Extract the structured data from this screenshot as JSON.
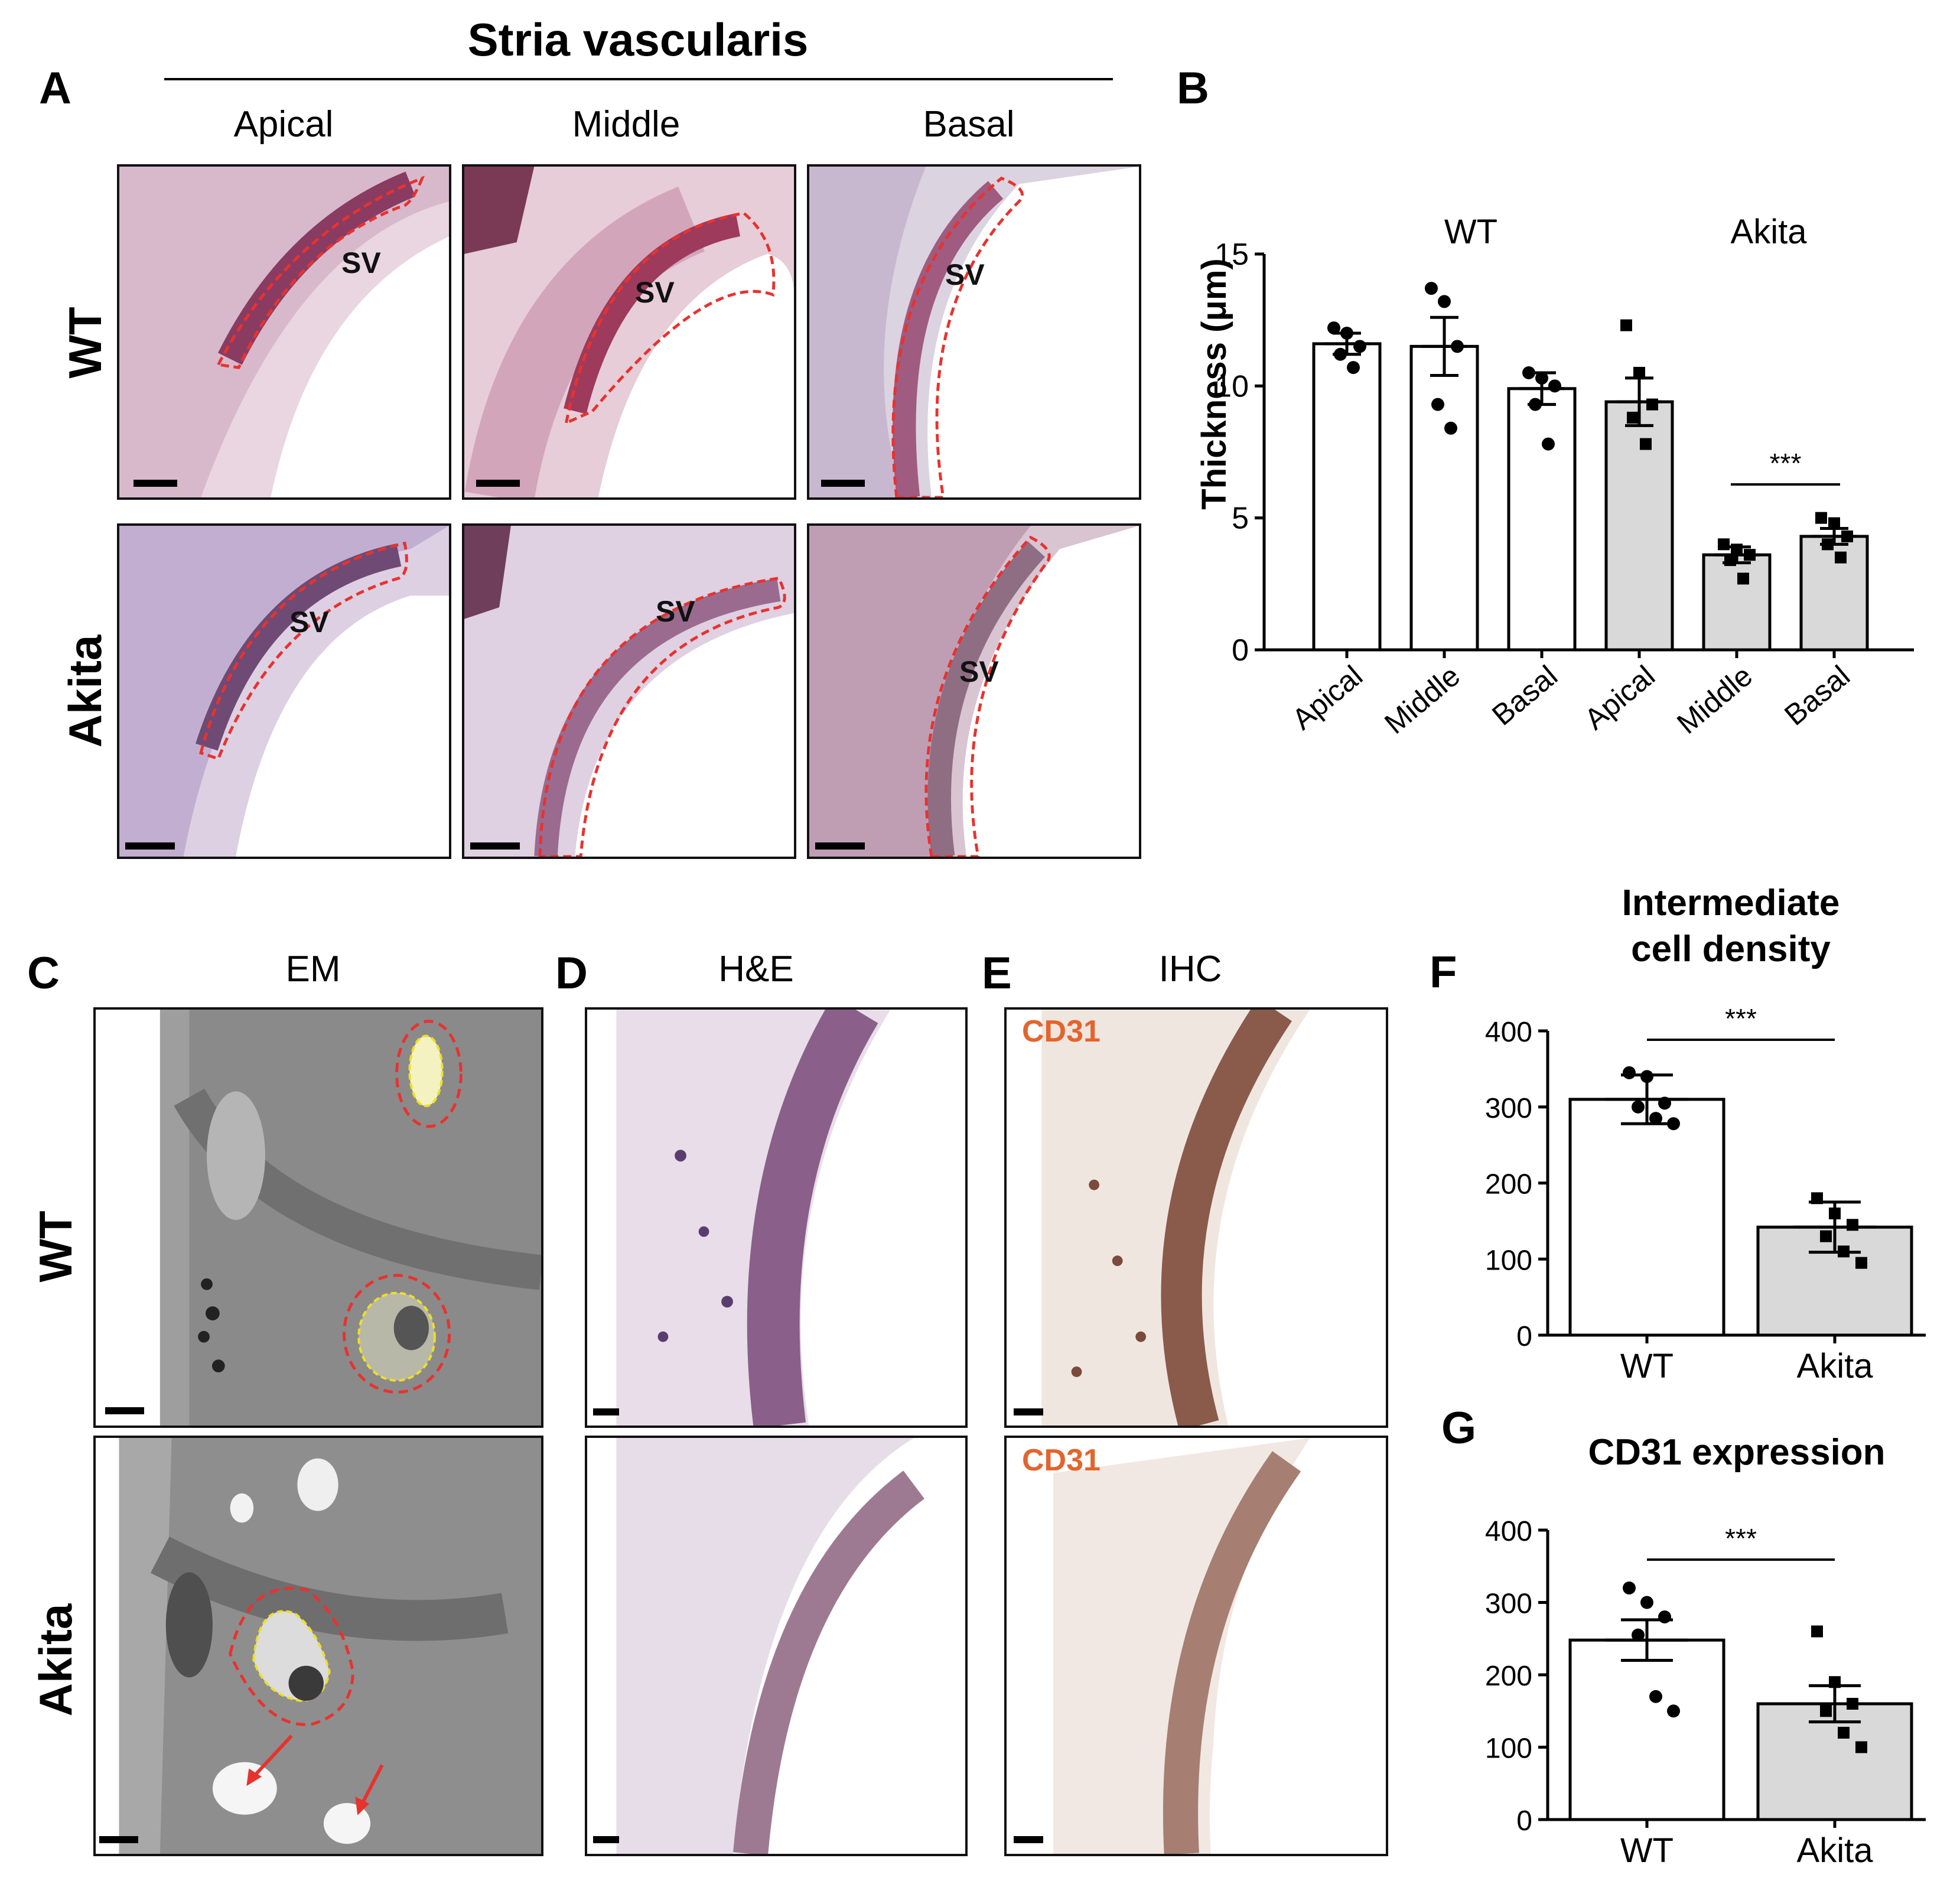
{
  "panelA": {
    "letter": "A",
    "title": "Stria vascularis",
    "columns": [
      "Apical",
      "Middle",
      "Basal"
    ],
    "rows": [
      "WT",
      "Akita"
    ],
    "sv_label": "SV"
  },
  "panelB": {
    "letter": "B"
  },
  "panelC": {
    "letter": "C",
    "title": "EM"
  },
  "panelD": {
    "letter": "D",
    "title": "H&E"
  },
  "panelE": {
    "letter": "E",
    "title": "IHC",
    "stain_label": "CD31"
  },
  "panelF": {
    "letter": "F",
    "title_line1": "Intermediate",
    "title_line2": "cell density"
  },
  "panelG": {
    "letter": "G",
    "title": "CD31 expression"
  },
  "rows_CDE": [
    "WT",
    "Akita"
  ],
  "colors": {
    "wt_bar": "#ffffff",
    "akita_bar": "#d9d9d9",
    "outline_red": "#e8322e",
    "outline_yellow": "#f0e020",
    "cd31_label": "#e3642c"
  },
  "chart_data": [
    {
      "id": "B",
      "type": "bar",
      "ylabel": "Thickness (μm)",
      "ylim": [
        0,
        15
      ],
      "yticks": [
        0,
        5,
        10,
        15
      ],
      "categories": [
        "Apical",
        "Middle",
        "Basal",
        "Apical",
        "Middle",
        "Basal"
      ],
      "groups": [
        "WT",
        "Akita"
      ],
      "values": [
        11.6,
        11.5,
        9.9,
        9.4,
        3.6,
        4.3
      ],
      "sem": [
        0.4,
        1.1,
        0.6,
        0.9,
        0.3,
        0.3
      ],
      "points": [
        [
          12.2,
          12.0,
          11.5,
          11.2,
          10.7
        ],
        [
          13.7,
          13.2,
          11.5,
          9.3,
          8.4
        ],
        [
          10.5,
          10.3,
          10.0,
          9.3,
          7.8
        ],
        [
          12.3,
          10.5,
          9.3,
          8.8,
          7.8
        ],
        [
          4.0,
          3.8,
          3.6,
          3.4,
          2.7
        ],
        [
          5.0,
          4.8,
          4.3,
          4.0,
          3.5
        ]
      ],
      "significance": {
        "between": [
          4,
          5
        ],
        "label": "***"
      }
    },
    {
      "id": "F",
      "type": "bar",
      "ylim": [
        0,
        400
      ],
      "yticks": [
        0,
        100,
        200,
        300,
        400
      ],
      "categories": [
        "WT",
        "Akita"
      ],
      "values": [
        310,
        142
      ],
      "sem": [
        32,
        33
      ],
      "points": [
        [
          345,
          340,
          305,
          300,
          285,
          278
        ],
        [
          180,
          160,
          145,
          130,
          110,
          95
        ]
      ],
      "significance": {
        "between": [
          0,
          1
        ],
        "label": "***"
      }
    },
    {
      "id": "G",
      "type": "bar",
      "ylim": [
        0,
        400
      ],
      "yticks": [
        0,
        100,
        200,
        300,
        400
      ],
      "categories": [
        "WT",
        "Akita"
      ],
      "values": [
        248,
        160
      ],
      "sem": [
        28,
        25
      ],
      "points": [
        [
          320,
          300,
          280,
          255,
          170,
          150
        ],
        [
          260,
          190,
          160,
          150,
          120,
          100
        ]
      ],
      "significance": {
        "between": [
          0,
          1
        ],
        "label": "***"
      }
    }
  ]
}
